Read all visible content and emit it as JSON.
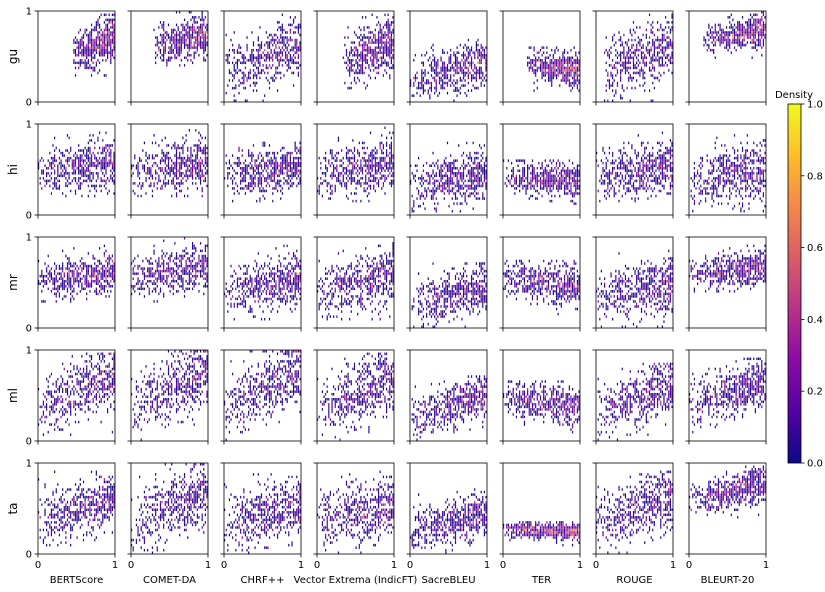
{
  "chart_data": {
    "type": "heatmap",
    "subtype": "small-multiple 2D density grid",
    "rows": [
      "gu",
      "hi",
      "mr",
      "ml",
      "ta"
    ],
    "columns": [
      "BERTScore",
      "COMET-DA",
      "CHRF++",
      "Vector Extrema (IndicFT)",
      "SacreBLEU",
      "TER",
      "ROUGE",
      "BLEURT-20"
    ],
    "x_range": [
      0,
      1
    ],
    "y_range": [
      0,
      1
    ],
    "x_ticks": [
      "0",
      "1"
    ],
    "y_ticks": [
      "0",
      "1"
    ],
    "colorbar": {
      "label": "Density",
      "colormap": "plasma",
      "range": [
        0,
        1
      ],
      "ticks": [
        "0.0",
        "0.2",
        "0.4",
        "0.6",
        "0.8",
        "1.0"
      ],
      "colors": [
        "#0d0887",
        "#5302a3",
        "#8b0aa5",
        "#b83289",
        "#db5c68",
        "#f48849",
        "#febd2a",
        "#f0f921"
      ]
    },
    "panels": {
      "gu": {
        "BERTScore": {
          "x": [
            0.45,
            1.0
          ],
          "y": [
            0.3,
            0.97
          ],
          "corr": 0.5
        },
        "COMET-DA": {
          "x": [
            0.3,
            1.0
          ],
          "y": [
            0.4,
            0.98
          ],
          "corr": 0.45
        },
        "CHRF++": {
          "x": [
            0.0,
            1.0
          ],
          "y": [
            0.0,
            0.95
          ],
          "corr": 0.55
        },
        "Vector Extrema (IndicFT)": {
          "x": [
            0.35,
            1.0
          ],
          "y": [
            0.15,
            0.97
          ],
          "corr": 0.5
        },
        "SacreBLEU": {
          "x": [
            0.0,
            1.0
          ],
          "y": [
            0.0,
            0.7
          ],
          "corr": 0.5
        },
        "TER": {
          "x": [
            0.3,
            1.0
          ],
          "y": [
            0.1,
            0.6
          ],
          "corr": -0.4
        },
        "ROUGE": {
          "x": [
            0.1,
            1.0
          ],
          "y": [
            0.0,
            0.97
          ],
          "corr": 0.55
        },
        "BLEURT-20": {
          "x": [
            0.2,
            1.0
          ],
          "y": [
            0.5,
            0.98
          ],
          "corr": 0.5
        }
      },
      "hi": {
        "BERTScore": {
          "x": [
            0.0,
            1.0
          ],
          "y": [
            0.2,
            0.95
          ],
          "corr": 0.3
        },
        "COMET-DA": {
          "x": [
            0.0,
            1.0
          ],
          "y": [
            0.2,
            0.95
          ],
          "corr": 0.3
        },
        "CHRF++": {
          "x": [
            0.0,
            1.0
          ],
          "y": [
            0.15,
            0.9
          ],
          "corr": 0.3
        },
        "Vector Extrema (IndicFT)": {
          "x": [
            0.0,
            1.0
          ],
          "y": [
            0.15,
            0.95
          ],
          "corr": 0.3
        },
        "SacreBLEU": {
          "x": [
            0.0,
            1.0
          ],
          "y": [
            0.05,
            0.8
          ],
          "corr": 0.35
        },
        "TER": {
          "x": [
            0.0,
            1.0
          ],
          "y": [
            0.1,
            0.6
          ],
          "corr": -0.25
        },
        "ROUGE": {
          "x": [
            0.0,
            1.0
          ],
          "y": [
            0.15,
            0.9
          ],
          "corr": 0.35
        },
        "BLEURT-20": {
          "x": [
            0.0,
            1.0
          ],
          "y": [
            0.05,
            0.95
          ],
          "corr": 0.3
        }
      },
      "mr": {
        "BERTScore": {
          "x": [
            0.0,
            1.0
          ],
          "y": [
            0.3,
            0.9
          ],
          "corr": 0.3
        },
        "COMET-DA": {
          "x": [
            0.0,
            1.0
          ],
          "y": [
            0.3,
            1.0
          ],
          "corr": 0.35
        },
        "CHRF++": {
          "x": [
            0.0,
            1.0
          ],
          "y": [
            0.1,
            0.9
          ],
          "corr": 0.4
        },
        "Vector Extrema (IndicFT)": {
          "x": [
            0.0,
            1.0
          ],
          "y": [
            0.1,
            0.95
          ],
          "corr": 0.4
        },
        "SacreBLEU": {
          "x": [
            0.0,
            1.0
          ],
          "y": [
            0.0,
            0.7
          ],
          "corr": 0.5
        },
        "TER": {
          "x": [
            0.0,
            1.0
          ],
          "y": [
            0.15,
            0.75
          ],
          "corr": -0.3
        },
        "ROUGE": {
          "x": [
            0.0,
            1.0
          ],
          "y": [
            0.0,
            0.85
          ],
          "corr": 0.45
        },
        "BLEURT-20": {
          "x": [
            0.0,
            1.0
          ],
          "y": [
            0.4,
            0.9
          ],
          "corr": 0.35
        }
      },
      "ml": {
        "BERTScore": {
          "x": [
            0.0,
            1.0
          ],
          "y": [
            0.0,
            0.95
          ],
          "corr": 0.75
        },
        "COMET-DA": {
          "x": [
            0.0,
            1.0
          ],
          "y": [
            0.0,
            1.0
          ],
          "corr": 0.75
        },
        "CHRF++": {
          "x": [
            0.0,
            1.0
          ],
          "y": [
            0.0,
            1.0
          ],
          "corr": 0.75
        },
        "Vector Extrema (IndicFT)": {
          "x": [
            0.0,
            1.0
          ],
          "y": [
            0.0,
            0.95
          ],
          "corr": 0.7
        },
        "SacreBLEU": {
          "x": [
            0.0,
            1.0
          ],
          "y": [
            0.0,
            0.7
          ],
          "corr": 0.7
        },
        "TER": {
          "x": [
            0.0,
            1.0
          ],
          "y": [
            0.1,
            0.65
          ],
          "corr": -0.35
        },
        "ROUGE": {
          "x": [
            0.0,
            1.0
          ],
          "y": [
            0.0,
            0.85
          ],
          "corr": 0.7
        },
        "BLEURT-20": {
          "x": [
            0.0,
            1.0
          ],
          "y": [
            0.1,
            0.9
          ],
          "corr": 0.6
        }
      },
      "ta": {
        "BERTScore": {
          "x": [
            0.0,
            1.0
          ],
          "y": [
            0.1,
            0.9
          ],
          "corr": 0.5
        },
        "COMET-DA": {
          "x": [
            0.0,
            1.0
          ],
          "y": [
            0.0,
            1.0
          ],
          "corr": 0.6
        },
        "CHRF++": {
          "x": [
            0.0,
            1.0
          ],
          "y": [
            0.0,
            0.9
          ],
          "corr": 0.45
        },
        "Vector Extrema (IndicFT)": {
          "x": [
            0.0,
            1.0
          ],
          "y": [
            0.0,
            0.9
          ],
          "corr": 0.45
        },
        "SacreBLEU": {
          "x": [
            0.0,
            1.0
          ],
          "y": [
            0.0,
            0.7
          ],
          "corr": 0.5
        },
        "TER": {
          "x": [
            0.0,
            1.0
          ],
          "y": [
            0.1,
            0.35
          ],
          "corr": -0.2
        },
        "ROUGE": {
          "x": [
            0.0,
            1.0
          ],
          "y": [
            0.0,
            0.9
          ],
          "corr": 0.6
        },
        "BLEURT-20": {
          "x": [
            0.0,
            1.0
          ],
          "y": [
            0.4,
            0.95
          ],
          "corr": 0.6
        }
      }
    }
  }
}
